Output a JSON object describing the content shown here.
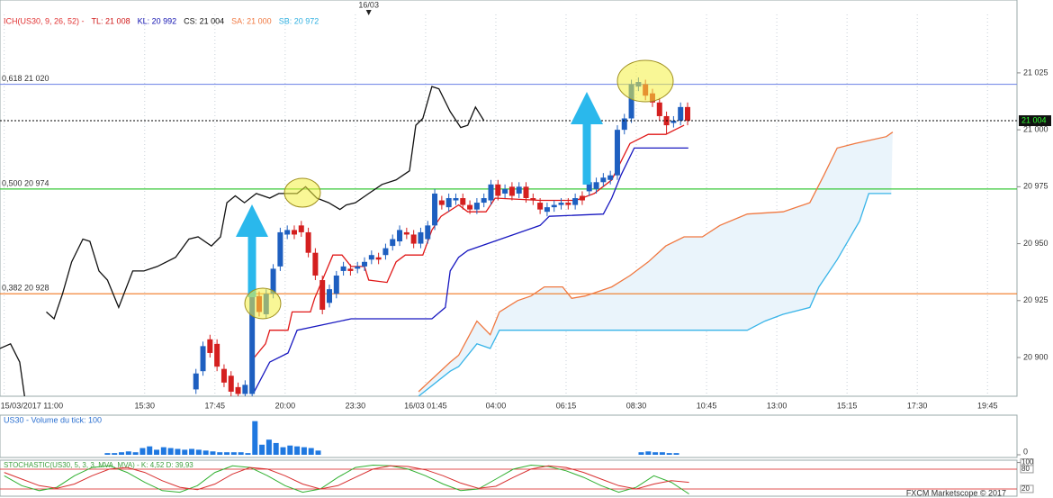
{
  "chart_data": [
    {
      "type": "candlestick",
      "legend": [
        {
          "text": "ICH(US30, 9, 26, 52) -",
          "color": "#e03030"
        },
        {
          "text": "TL: 21 008",
          "color": "#d01818"
        },
        {
          "text": "KL: 20 992",
          "color": "#1010b0"
        },
        {
          "text": "CS: 21 004",
          "color": "#111111"
        },
        {
          "text": "SA: 21 000",
          "color": "#f07840"
        },
        {
          "text": "SB: 20 972",
          "color": "#30b0e0"
        }
      ],
      "xlim": [
        -0.06,
        14.42
      ],
      "ylim": [
        20883,
        21057
      ],
      "grid": true,
      "xticks": [
        {
          "value": 0,
          "label": "15/03/2017 11:00"
        },
        {
          "value": 2,
          "label": "15:30"
        },
        {
          "value": 3,
          "label": "17:45"
        },
        {
          "value": 4,
          "label": "20:00"
        },
        {
          "value": 5,
          "label": "23:30"
        },
        {
          "value": 6,
          "label": "16/03 01:45"
        },
        {
          "value": 7,
          "label": "04:00"
        },
        {
          "value": 8,
          "label": "06:15"
        },
        {
          "value": 9,
          "label": "08:30"
        },
        {
          "value": 10,
          "label": "10:45"
        },
        {
          "value": 11,
          "label": "13:00"
        },
        {
          "value": 12,
          "label": "15:15"
        },
        {
          "value": 13,
          "label": "17:30"
        },
        {
          "value": 14,
          "label": "19:45"
        }
      ],
      "yticks": [
        {
          "value": 20900,
          "label": "20 900"
        },
        {
          "value": 20925,
          "label": "20 925"
        },
        {
          "value": 20950,
          "label": "20 950"
        },
        {
          "value": 20975,
          "label": "20 975"
        },
        {
          "value": 21000,
          "label": "21 000"
        },
        {
          "value": 21025,
          "label": "21 025"
        }
      ],
      "candles": {
        "up_color": "#1e5fc0",
        "down_color": "#d41f1f",
        "x": [
          2.73,
          2.83,
          2.93,
          3.03,
          3.13,
          3.23,
          3.33,
          3.43,
          3.53,
          3.63,
          3.73,
          3.83,
          3.93,
          4.03,
          4.13,
          4.23,
          4.33,
          4.43,
          4.53,
          4.63,
          4.73,
          4.83,
          4.93,
          5.03,
          5.13,
          5.23,
          5.33,
          5.43,
          5.53,
          5.63,
          5.73,
          5.83,
          5.93,
          6.03,
          6.13,
          6.23,
          6.33,
          6.43,
          6.53,
          6.63,
          6.73,
          6.83,
          6.93,
          7.03,
          7.13,
          7.23,
          7.33,
          7.43,
          7.53,
          7.63,
          7.73,
          7.83,
          7.93,
          8.03,
          8.13,
          8.23,
          8.33,
          8.43,
          8.53,
          8.63,
          8.73,
          8.83,
          8.93,
          9.03,
          9.13,
          9.23,
          9.33,
          9.43,
          9.53,
          9.63,
          9.73
        ],
        "open": [
          20886,
          20894,
          20908,
          20906,
          20895,
          20892,
          20887,
          20884,
          20884,
          20927,
          20919,
          20928,
          20940,
          20954,
          20956,
          20958,
          20955,
          20946,
          20934,
          20924,
          20928,
          20938,
          20939,
          20939,
          20940,
          20943,
          20944,
          20945,
          20949,
          20951,
          20955,
          20954,
          20950,
          20952,
          20958,
          20969,
          20966,
          20969,
          20970,
          20967,
          20965,
          20968,
          20969,
          20976,
          20972,
          20975,
          20972,
          20975,
          20970,
          20968,
          20964,
          20966,
          20967,
          20968,
          20967,
          20971,
          20973,
          20974,
          20977,
          20978,
          20980,
          21000,
          21005,
          21019,
          21020,
          21016,
          21012,
          21006,
          21003,
          21004,
          21010
        ],
        "high": [
          20895,
          20907,
          20910,
          20908,
          20897,
          20894,
          20889,
          20890,
          20931,
          20929,
          20930,
          20941,
          20957,
          20958,
          20958,
          20960,
          20957,
          20948,
          20936,
          20932,
          20938,
          20942,
          20941,
          20942,
          20944,
          20947,
          20946,
          20950,
          20954,
          20958,
          20957,
          20956,
          20957,
          20960,
          20974,
          20971,
          20972,
          20972,
          20972,
          20969,
          20970,
          20972,
          20978,
          20978,
          20976,
          20977,
          20977,
          20977,
          20972,
          20970,
          20968,
          20969,
          20970,
          20970,
          20972,
          20973,
          20979,
          20979,
          20981,
          20982,
          21002,
          21007,
          21022,
          21023,
          21022,
          21018,
          21014,
          21008,
          21006,
          21012,
          21012
        ],
        "low": [
          20884,
          20892,
          20900,
          20894,
          20887,
          20883,
          20882,
          20882,
          20882,
          20918,
          20917,
          20926,
          20938,
          20952,
          20952,
          20953,
          20944,
          20934,
          20919,
          20922,
          20926,
          20936,
          20936,
          20937,
          20938,
          20941,
          20941,
          20943,
          20947,
          20949,
          20952,
          20948,
          20948,
          20950,
          20956,
          20965,
          20964,
          20967,
          20965,
          20963,
          20963,
          20966,
          20967,
          20969,
          20970,
          20969,
          20970,
          20968,
          20967,
          20963,
          20962,
          20964,
          20965,
          20965,
          20965,
          20967,
          20971,
          20972,
          20975,
          20976,
          20978,
          20998,
          21003,
          21017,
          21013,
          21010,
          21004,
          20998,
          21001,
          21002,
          21002
        ],
        "close": [
          20893,
          20905,
          20902,
          20896,
          20889,
          20885,
          20884,
          20888,
          20929,
          20920,
          20928,
          20939,
          20955,
          20956,
          20954,
          20955,
          20946,
          20936,
          20921,
          20930,
          20936,
          20940,
          20938,
          20940,
          20942,
          20945,
          20943,
          20948,
          20952,
          20956,
          20954,
          20950,
          20955,
          20958,
          20972,
          20967,
          20970,
          20970,
          20967,
          20965,
          20968,
          20970,
          20976,
          20971,
          20974,
          20971,
          20975,
          20970,
          20969,
          20965,
          20966,
          20967,
          20968,
          20967,
          20970,
          20969,
          20977,
          20977,
          20979,
          20980,
          21000,
          21005,
          21020,
          21021,
          21015,
          21012,
          21006,
          21002,
          21004,
          21010,
          21004
        ]
      },
      "cloud_color": "#eaf4fb",
      "lines": [
        {
          "color": "#111111",
          "x": [
            -0.06,
            0.09,
            0.22,
            0.29,
            0.51,
            0.6,
            0.71,
            0.83,
            0.96,
            1.12,
            1.22,
            1.35,
            1.47,
            1.63,
            1.83,
            1.99,
            2.18,
            2.44,
            2.63,
            2.76,
            2.95,
            3.08,
            3.17,
            3.29,
            3.42,
            3.59,
            3.78,
            3.91,
            4.17,
            4.29,
            4.45,
            4.62,
            4.78,
            4.87,
            5.0,
            5.19,
            5.38,
            5.58,
            5.77,
            5.86,
            5.96,
            6.09,
            6.19,
            6.35,
            6.5,
            6.6,
            6.71,
            6.83
          ],
          "values": [
            20904,
            20906,
            20898,
            20883,
            null,
            20920,
            20917,
            20928,
            20942,
            20952,
            20951,
            20938,
            20934,
            20922,
            20938,
            20938,
            20940,
            20944,
            20952,
            20953,
            20949,
            20953,
            20968,
            20971,
            20968,
            20972,
            20970,
            20972,
            20972,
            20975,
            20970,
            20968,
            20965,
            20967,
            20968,
            20972,
            20976,
            20978,
            20982,
            21002,
            21005,
            21019,
            21018,
            21008,
            21001,
            21002,
            21010,
            21004
          ]
        },
        {
          "color": "#e01818",
          "x": [
            3.56,
            3.72,
            3.78,
            4.04,
            4.1,
            4.36,
            4.42,
            4.68,
            4.81,
            4.94,
            5.13,
            5.19,
            5.45,
            5.58,
            5.71,
            5.96,
            6.09,
            6.22,
            6.47,
            6.6,
            6.86,
            6.99,
            7.63,
            8.14,
            8.4,
            8.65,
            8.91,
            9.17,
            9.42,
            9.55,
            9.68
          ],
          "values": [
            20900,
            20906,
            20912,
            20912,
            20920,
            20920,
            20926,
            20945,
            20945,
            20940,
            20940,
            20934,
            20933,
            20942,
            20945,
            20945,
            20956,
            20962,
            20967,
            20964,
            20964,
            20970,
            20969,
            20969,
            20972,
            20978,
            20994,
            20998,
            20998,
            21000,
            21002
          ]
        },
        {
          "color": "#1818c0",
          "x": [
            3.56,
            3.78,
            4.04,
            4.17,
            4.94,
            6.09,
            6.28,
            6.35,
            6.47,
            6.6,
            7.63,
            7.76,
            8.53,
            8.65,
            8.78,
            8.97,
            9.74
          ],
          "values": [
            20885,
            20898,
            20902,
            20912,
            20917,
            20917,
            20922,
            20938,
            20944,
            20947,
            20958,
            20962,
            20963,
            20970,
            20980,
            20992,
            20992
          ]
        },
        {
          "color": "#f07840",
          "x": [
            5.9,
            6.35,
            6.47,
            6.73,
            6.92,
            7.05,
            7.31,
            7.5,
            7.69,
            7.95,
            8.08,
            8.27,
            8.65,
            8.91,
            9.17,
            9.42,
            9.68,
            9.94,
            10.19,
            10.58,
            11.09,
            11.47,
            11.67,
            11.86,
            12.12,
            12.56,
            12.65
          ],
          "values": [
            20885,
            20898,
            20901,
            20916,
            20910,
            20920,
            20925,
            20927,
            20931,
            20931,
            20926,
            20927,
            20931,
            20936,
            20942,
            20949,
            20953,
            20953,
            20958,
            20963,
            20964,
            20968,
            20980,
            20992,
            20994,
            20997,
            20999
          ]
        },
        {
          "color": "#38b4e8",
          "x": [
            5.9,
            6.35,
            6.47,
            6.73,
            6.92,
            7.05,
            10.58,
            10.83,
            11.09,
            11.47,
            11.6,
            11.86,
            12.18,
            12.31,
            12.63
          ],
          "values": [
            20883,
            20894,
            20896,
            20906,
            20904,
            20912,
            20912,
            20916,
            20919,
            20922,
            20931,
            20943,
            20960,
            20972,
            20972
          ]
        }
      ],
      "levels": [
        {
          "label": "0,618 21 020",
          "value": 21020,
          "color": "#7a8ee8"
        },
        {
          "label": "0,500 20 974",
          "value": 20974,
          "color": "#38c838"
        },
        {
          "label": "0,382 20 928",
          "value": 20928,
          "color": "#f07820"
        }
      ],
      "last": {
        "value": 21004,
        "label": "21 004"
      },
      "marker": {
        "label": "16/03",
        "x": 5.19
      }
    },
    {
      "type": "bar",
      "title": "US30 - Volume du tick: 100",
      "color": "#1f78e0",
      "xlim": [
        -0.06,
        14.42
      ],
      "ylim": [
        0,
        45
      ],
      "yticks": [
        0
      ],
      "x": [
        1.47,
        1.57,
        1.67,
        1.77,
        1.87,
        1.97,
        2.07,
        2.17,
        2.27,
        2.37,
        2.47,
        2.57,
        2.67,
        2.77,
        2.87,
        2.97,
        3.07,
        3.17,
        3.27,
        3.37,
        3.47,
        3.57,
        3.67,
        3.77,
        3.87,
        3.97,
        4.07,
        4.17,
        4.27,
        4.37,
        4.47,
        9.07,
        9.17,
        9.27,
        9.37,
        9.47,
        9.57
      ],
      "values": [
        2,
        2,
        3,
        4,
        3,
        8,
        10,
        6,
        9,
        8,
        7,
        6,
        7,
        6,
        5,
        4,
        3,
        3,
        3,
        3,
        2,
        40,
        12,
        18,
        14,
        9,
        11,
        10,
        9,
        8,
        5,
        3,
        4,
        3,
        3,
        2,
        2
      ]
    },
    {
      "type": "line",
      "title": "STOCHASTIC(US30, 5, 3, 3, MVA, MVA) - K: 4,52   D: 39,93",
      "xlim": [
        -0.06,
        14.42
      ],
      "ylim": [
        0,
        100
      ],
      "yticks": [
        100,
        80,
        20
      ],
      "level_color": "#e05050",
      "series": [
        {
          "color": "#30b030",
          "x": [
            0,
            0.25,
            0.5,
            0.75,
            1,
            1.25,
            1.5,
            1.75,
            2,
            2.25,
            2.5,
            2.75,
            3,
            3.25,
            3.5,
            3.75,
            4,
            4.25,
            4.5,
            4.75,
            5,
            5.25,
            5.5,
            5.75,
            6,
            6.25,
            6.5,
            6.75,
            7,
            7.25,
            7.5,
            7.75,
            8,
            8.25,
            8.5,
            8.75,
            9,
            9.25,
            9.5,
            9.75
          ],
          "values": [
            60,
            30,
            15,
            25,
            60,
            85,
            90,
            70,
            40,
            15,
            10,
            30,
            70,
            90,
            85,
            60,
            30,
            10,
            20,
            55,
            85,
            92,
            90,
            80,
            60,
            35,
            15,
            20,
            50,
            80,
            92,
            88,
            75,
            55,
            30,
            10,
            25,
            60,
            40,
            5
          ]
        },
        {
          "color": "#d83030",
          "x": [
            0,
            0.25,
            0.5,
            0.75,
            1,
            1.25,
            1.5,
            1.75,
            2,
            2.25,
            2.5,
            2.75,
            3,
            3.25,
            3.5,
            3.75,
            4,
            4.25,
            4.5,
            4.75,
            5,
            5.25,
            5.5,
            5.75,
            6,
            6.25,
            6.5,
            6.75,
            7,
            7.25,
            7.5,
            7.75,
            8,
            8.25,
            8.5,
            8.75,
            9,
            9.25,
            9.5,
            9.75
          ],
          "values": [
            70,
            50,
            30,
            22,
            35,
            60,
            80,
            85,
            70,
            45,
            25,
            18,
            35,
            65,
            85,
            80,
            60,
            35,
            20,
            30,
            55,
            80,
            90,
            88,
            78,
            60,
            38,
            22,
            28,
            55,
            80,
            90,
            85,
            70,
            50,
            30,
            20,
            35,
            45,
            40
          ]
        }
      ]
    }
  ],
  "footer": "FXCM Marketscope © 2017"
}
